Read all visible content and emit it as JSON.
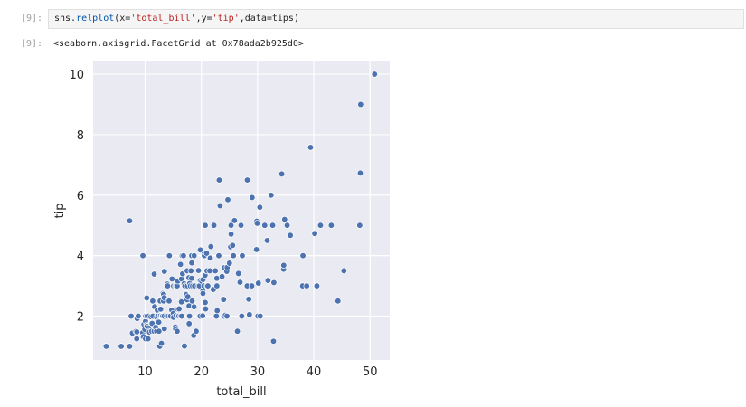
{
  "cells": [
    {
      "input_prompt": "[9]:",
      "code_parts": {
        "obj": "sns.",
        "fn": "relplot",
        "open": "(x=",
        "x_arg": "'total_bill'",
        "mid": ",y=",
        "y_arg": "'tip'",
        "rest": ",data=tips)"
      },
      "output_prompt": "[9]:",
      "output_text": "<seaborn.axisgrid.FacetGrid at 0x78ada2b925d0>"
    }
  ],
  "colors": {
    "plot_background": "#eaeaf2",
    "grid": "#ffffff",
    "marker": "#4c72b0",
    "marker_edge": "#ffffff",
    "text": "#262626"
  },
  "chart_data": {
    "type": "scatter",
    "xlabel": "total_bill",
    "ylabel": "tip",
    "xlim": [
      0.75,
      53.5
    ],
    "ylim": [
      0.55,
      10.45
    ],
    "xticks": [
      10,
      20,
      30,
      40,
      50
    ],
    "yticks": [
      2,
      4,
      6,
      8,
      10
    ],
    "grid": true,
    "legend": "none",
    "points": [
      [
        3.07,
        1.0
      ],
      [
        5.75,
        1.0
      ],
      [
        7.25,
        1.0
      ],
      [
        7.25,
        5.15
      ],
      [
        7.51,
        2.0
      ],
      [
        7.74,
        1.44
      ],
      [
        8.35,
        1.5
      ],
      [
        8.51,
        1.25
      ],
      [
        8.52,
        1.48
      ],
      [
        8.58,
        1.92
      ],
      [
        8.77,
        2.0
      ],
      [
        9.55,
        1.45
      ],
      [
        9.6,
        4.0
      ],
      [
        9.68,
        1.32
      ],
      [
        9.78,
        1.73
      ],
      [
        9.94,
        1.56
      ],
      [
        10.07,
        1.25
      ],
      [
        10.07,
        1.83
      ],
      [
        10.09,
        2.0
      ],
      [
        10.27,
        1.71
      ],
      [
        10.29,
        2.6
      ],
      [
        10.33,
        1.67
      ],
      [
        10.33,
        2.0
      ],
      [
        10.34,
        1.66
      ],
      [
        10.34,
        2.0
      ],
      [
        10.51,
        1.25
      ],
      [
        10.59,
        1.61
      ],
      [
        10.63,
        2.0
      ],
      [
        10.65,
        1.5
      ],
      [
        10.77,
        1.47
      ],
      [
        11.02,
        1.98
      ],
      [
        11.17,
        1.5
      ],
      [
        11.24,
        1.76
      ],
      [
        11.35,
        2.5
      ],
      [
        11.38,
        2.0
      ],
      [
        11.59,
        1.5
      ],
      [
        11.61,
        3.39
      ],
      [
        11.69,
        2.31
      ],
      [
        11.87,
        1.63
      ],
      [
        12.02,
        1.97
      ],
      [
        12.03,
        1.5
      ],
      [
        12.16,
        2.2
      ],
      [
        12.26,
        2.0
      ],
      [
        12.43,
        1.8
      ],
      [
        12.46,
        1.5
      ],
      [
        12.48,
        2.52
      ],
      [
        12.54,
        2.5
      ],
      [
        12.6,
        1.0
      ],
      [
        12.66,
        2.5
      ],
      [
        12.69,
        2.0
      ],
      [
        12.74,
        2.01
      ],
      [
        12.76,
        2.23
      ],
      [
        12.9,
        1.1
      ],
      [
        13.0,
        2.0
      ],
      [
        13.03,
        2.0
      ],
      [
        13.13,
        2.0
      ],
      [
        13.16,
        2.75
      ],
      [
        13.27,
        2.5
      ],
      [
        13.28,
        2.72
      ],
      [
        13.37,
        2.0
      ],
      [
        13.39,
        2.61
      ],
      [
        13.42,
        1.58
      ],
      [
        13.42,
        3.48
      ],
      [
        13.81,
        2.0
      ],
      [
        13.94,
        3.06
      ],
      [
        14.0,
        3.0
      ],
      [
        14.07,
        2.5
      ],
      [
        14.15,
        2.0
      ],
      [
        14.26,
        2.5
      ],
      [
        14.31,
        4.0
      ],
      [
        14.48,
        2.0
      ],
      [
        14.52,
        2.0
      ],
      [
        14.73,
        2.2
      ],
      [
        14.78,
        3.23
      ],
      [
        15.01,
        2.09
      ],
      [
        15.04,
        1.96
      ],
      [
        15.06,
        3.0
      ],
      [
        15.36,
        1.64
      ],
      [
        15.38,
        3.0
      ],
      [
        15.42,
        1.57
      ],
      [
        15.48,
        2.02
      ],
      [
        15.53,
        3.0
      ],
      [
        15.69,
        1.5
      ],
      [
        15.69,
        3.0
      ],
      [
        15.77,
        2.23
      ],
      [
        15.81,
        3.16
      ],
      [
        15.98,
        2.03
      ],
      [
        16.0,
        2.0
      ],
      [
        16.04,
        2.24
      ],
      [
        16.27,
        2.5
      ],
      [
        16.29,
        3.71
      ],
      [
        16.31,
        2.0
      ],
      [
        16.4,
        2.5
      ],
      [
        16.45,
        2.47
      ],
      [
        16.47,
        3.23
      ],
      [
        16.49,
        2.0
      ],
      [
        16.58,
        4.0
      ],
      [
        16.66,
        3.4
      ],
      [
        16.82,
        4.0
      ],
      [
        16.93,
        3.07
      ],
      [
        16.97,
        1.0
      ],
      [
        16.99,
        1.01
      ],
      [
        17.07,
        3.0
      ],
      [
        17.26,
        2.74
      ],
      [
        17.29,
        2.71
      ],
      [
        17.31,
        3.5
      ],
      [
        17.46,
        2.54
      ],
      [
        17.47,
        3.5
      ],
      [
        17.51,
        3.0
      ],
      [
        17.59,
        2.64
      ],
      [
        17.78,
        3.27
      ],
      [
        17.81,
        2.34
      ],
      [
        17.82,
        1.75
      ],
      [
        17.89,
        2.0
      ],
      [
        17.92,
        3.08
      ],
      [
        18.04,
        3.0
      ],
      [
        18.15,
        3.5
      ],
      [
        18.24,
        3.76
      ],
      [
        18.26,
        3.25
      ],
      [
        18.28,
        4.0
      ],
      [
        18.29,
        3.76
      ],
      [
        18.35,
        2.5
      ],
      [
        18.43,
        3.0
      ],
      [
        18.64,
        1.36
      ],
      [
        18.69,
        2.31
      ],
      [
        18.71,
        4.0
      ],
      [
        18.78,
        3.0
      ],
      [
        19.08,
        1.5
      ],
      [
        19.44,
        3.0
      ],
      [
        19.49,
        3.51
      ],
      [
        19.65,
        3.0
      ],
      [
        19.77,
        2.0
      ],
      [
        19.81,
        4.19
      ],
      [
        19.82,
        3.18
      ],
      [
        20.08,
        3.15
      ],
      [
        20.23,
        2.01
      ],
      [
        20.27,
        2.83
      ],
      [
        20.29,
        2.75
      ],
      [
        20.29,
        3.21
      ],
      [
        20.45,
        3.0
      ],
      [
        20.49,
        4.06
      ],
      [
        20.53,
        4.0
      ],
      [
        20.65,
        3.35
      ],
      [
        20.69,
        2.45
      ],
      [
        20.69,
        5.0
      ],
      [
        20.76,
        2.24
      ],
      [
        20.9,
        3.5
      ],
      [
        20.92,
        4.08
      ],
      [
        21.01,
        3.5
      ],
      [
        21.01,
        3.0
      ],
      [
        21.16,
        3.0
      ],
      [
        21.5,
        3.5
      ],
      [
        21.58,
        3.92
      ],
      [
        21.7,
        4.3
      ],
      [
        22.12,
        2.88
      ],
      [
        22.23,
        5.0
      ],
      [
        22.42,
        3.48
      ],
      [
        22.49,
        3.5
      ],
      [
        22.67,
        2.0
      ],
      [
        22.75,
        3.25
      ],
      [
        22.76,
        3.0
      ],
      [
        22.82,
        2.18
      ],
      [
        23.1,
        4.0
      ],
      [
        23.17,
        6.5
      ],
      [
        23.33,
        5.65
      ],
      [
        23.68,
        3.31
      ],
      [
        23.95,
        2.55
      ],
      [
        24.01,
        2.0
      ],
      [
        24.06,
        3.6
      ],
      [
        24.27,
        2.03
      ],
      [
        24.52,
        3.48
      ],
      [
        24.55,
        2.0
      ],
      [
        24.59,
        3.61
      ],
      [
        24.71,
        5.85
      ],
      [
        25.0,
        3.75
      ],
      [
        25.21,
        4.29
      ],
      [
        25.28,
        5.0
      ],
      [
        25.29,
        4.71
      ],
      [
        25.56,
        4.34
      ],
      [
        25.71,
        4.0
      ],
      [
        25.89,
        5.16
      ],
      [
        26.41,
        1.5
      ],
      [
        26.59,
        3.41
      ],
      [
        26.86,
        3.14
      ],
      [
        26.88,
        3.12
      ],
      [
        27.05,
        5.0
      ],
      [
        27.18,
        2.0
      ],
      [
        27.2,
        4.0
      ],
      [
        27.28,
        4.0
      ],
      [
        28.15,
        3.0
      ],
      [
        28.17,
        6.5
      ],
      [
        28.44,
        2.56
      ],
      [
        28.55,
        2.05
      ],
      [
        28.97,
        3.0
      ],
      [
        29.03,
        5.92
      ],
      [
        29.8,
        4.2
      ],
      [
        29.85,
        5.14
      ],
      [
        29.93,
        5.07
      ],
      [
        30.06,
        2.0
      ],
      [
        30.14,
        3.09
      ],
      [
        30.4,
        5.6
      ],
      [
        30.46,
        2.0
      ],
      [
        31.27,
        5.0
      ],
      [
        31.71,
        4.5
      ],
      [
        31.85,
        3.18
      ],
      [
        32.4,
        6.0
      ],
      [
        32.68,
        5.0
      ],
      [
        32.83,
        1.17
      ],
      [
        32.9,
        3.11
      ],
      [
        34.3,
        6.7
      ],
      [
        34.63,
        3.55
      ],
      [
        34.65,
        3.68
      ],
      [
        34.81,
        5.2
      ],
      [
        35.26,
        5.0
      ],
      [
        35.83,
        4.67
      ],
      [
        38.01,
        3.0
      ],
      [
        38.07,
        4.0
      ],
      [
        38.73,
        3.0
      ],
      [
        39.42,
        7.58
      ],
      [
        40.17,
        4.73
      ],
      [
        40.55,
        3.0
      ],
      [
        41.19,
        5.0
      ],
      [
        43.11,
        5.0
      ],
      [
        44.3,
        2.5
      ],
      [
        45.35,
        3.5
      ],
      [
        48.17,
        5.0
      ],
      [
        48.27,
        6.73
      ],
      [
        48.33,
        9.0
      ],
      [
        50.81,
        10.0
      ]
    ]
  }
}
